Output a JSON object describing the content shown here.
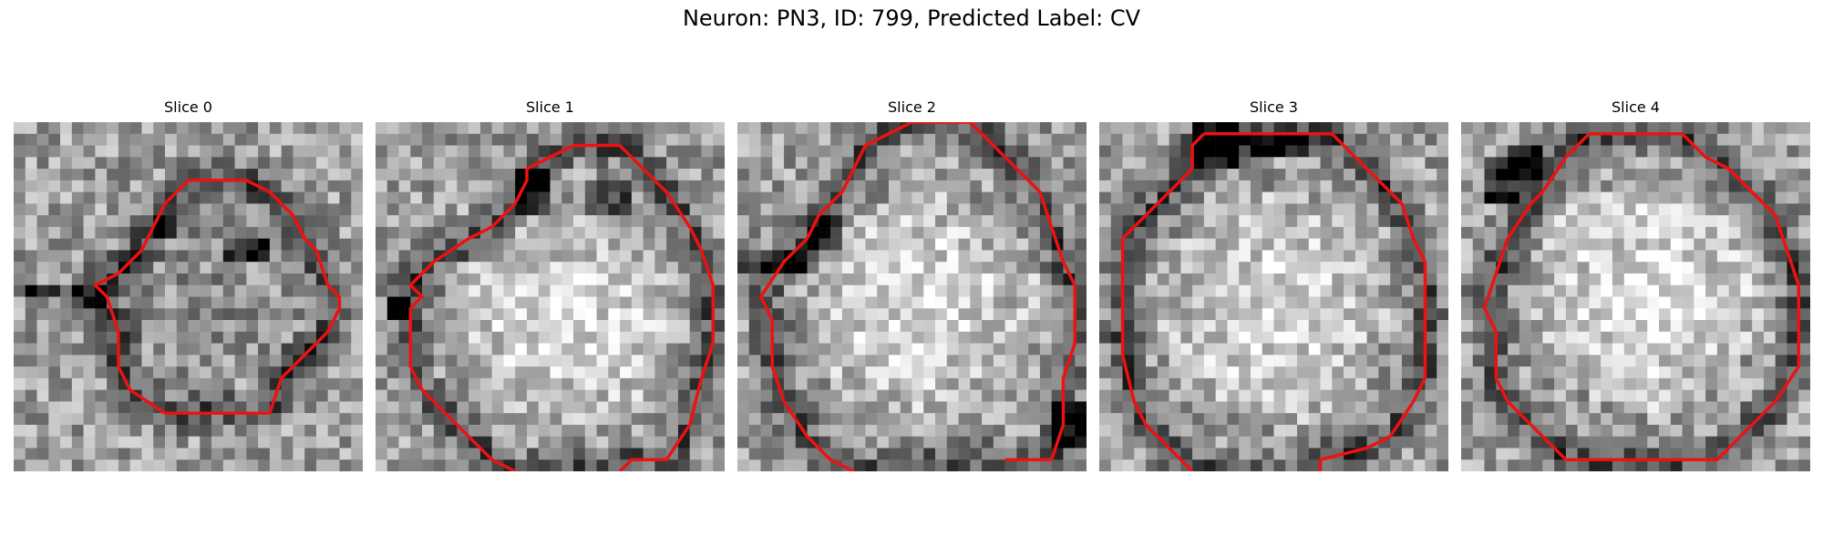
{
  "figure": {
    "title": "Neuron: PN3, ID: 799, Predicted Label: CV",
    "outline_color": "#ee1111",
    "colormap": "gray"
  },
  "slices": [
    {
      "title": "Slice 0",
      "outline": [
        [
          15,
          5
        ],
        [
          20,
          5
        ],
        [
          22,
          6
        ],
        [
          24,
          8
        ],
        [
          25,
          10
        ],
        [
          26,
          11
        ],
        [
          27,
          14
        ],
        [
          28,
          15
        ],
        [
          28,
          16
        ],
        [
          27,
          18
        ],
        [
          25,
          20
        ],
        [
          23,
          22
        ],
        [
          22,
          25
        ],
        [
          21,
          25
        ],
        [
          13,
          25
        ],
        [
          10,
          23
        ],
        [
          9,
          21
        ],
        [
          9,
          18
        ],
        [
          8,
          15
        ],
        [
          7,
          14
        ],
        [
          9,
          13
        ],
        [
          11,
          11
        ],
        [
          12,
          9
        ],
        [
          13,
          7
        ],
        [
          15,
          5
        ]
      ],
      "closed": true
    },
    {
      "title": "Slice 1",
      "outline": [
        [
          17,
          2
        ],
        [
          21,
          2
        ],
        [
          23,
          4
        ],
        [
          25,
          6
        ],
        [
          27,
          9
        ],
        [
          28,
          11
        ],
        [
          29,
          14
        ],
        [
          29,
          19
        ],
        [
          28,
          22
        ],
        [
          27,
          26
        ],
        [
          25,
          29
        ],
        [
          22,
          29
        ],
        [
          21,
          30
        ]
      ],
      "outline_b": [
        [
          12,
          30
        ],
        [
          10,
          29
        ],
        [
          8,
          27
        ],
        [
          6,
          25
        ],
        [
          4,
          23
        ],
        [
          3,
          21
        ],
        [
          3,
          16
        ],
        [
          4,
          15
        ],
        [
          3,
          14
        ],
        [
          5,
          12
        ],
        [
          8,
          10
        ],
        [
          10,
          9
        ],
        [
          12,
          7
        ],
        [
          13,
          5
        ],
        [
          13,
          4
        ],
        [
          15,
          3
        ],
        [
          17,
          2
        ]
      ],
      "closed": false
    },
    {
      "title": "Slice 2",
      "outline": [
        [
          15,
          0
        ],
        [
          20,
          0
        ],
        [
          21,
          1
        ],
        [
          22,
          2
        ],
        [
          24,
          4
        ],
        [
          26,
          6
        ],
        [
          27,
          9
        ],
        [
          28,
          12
        ],
        [
          29,
          14
        ],
        [
          29,
          19
        ],
        [
          28,
          22
        ],
        [
          28,
          26
        ],
        [
          27,
          29
        ],
        [
          23,
          29
        ]
      ],
      "outline_b": [
        [
          10,
          30
        ],
        [
          8,
          29
        ],
        [
          6,
          27
        ],
        [
          4,
          24
        ],
        [
          3,
          21
        ],
        [
          3,
          17
        ],
        [
          2,
          15
        ],
        [
          4,
          12
        ],
        [
          6,
          10
        ],
        [
          7,
          8
        ],
        [
          9,
          6
        ],
        [
          10,
          4
        ],
        [
          11,
          2
        ],
        [
          13,
          1
        ],
        [
          15,
          0
        ]
      ],
      "closed": false
    },
    {
      "title": "Slice 3",
      "outline": [
        [
          9,
          1
        ],
        [
          20,
          1
        ],
        [
          21,
          2
        ],
        [
          23,
          4
        ],
        [
          26,
          7
        ],
        [
          27,
          10
        ],
        [
          28,
          12
        ],
        [
          28,
          22
        ],
        [
          27,
          24
        ],
        [
          25,
          27
        ],
        [
          23,
          28
        ],
        [
          19,
          29
        ],
        [
          19,
          30
        ]
      ],
      "outline_b": [
        [
          8,
          30
        ],
        [
          6,
          28
        ],
        [
          4,
          26
        ],
        [
          3,
          24
        ],
        [
          2,
          20
        ],
        [
          2,
          16
        ],
        [
          2,
          12
        ],
        [
          2,
          10
        ],
        [
          4,
          8
        ],
        [
          6,
          6
        ],
        [
          8,
          4
        ],
        [
          8,
          2
        ],
        [
          9,
          1
        ]
      ],
      "closed": false
    },
    {
      "title": "Slice 4",
      "outline": [
        [
          11,
          1
        ],
        [
          19,
          1
        ],
        [
          21,
          3
        ],
        [
          23,
          4
        ],
        [
          25,
          6
        ],
        [
          27,
          8
        ],
        [
          28,
          11
        ],
        [
          29,
          14
        ],
        [
          29,
          21
        ],
        [
          27,
          24
        ],
        [
          25,
          26
        ],
        [
          23,
          28
        ],
        [
          22,
          29
        ],
        [
          18,
          29
        ],
        [
          9,
          29
        ],
        [
          8,
          28
        ],
        [
          6,
          26
        ],
        [
          4,
          24
        ],
        [
          3,
          22
        ],
        [
          3,
          18
        ],
        [
          2,
          16
        ],
        [
          3,
          13
        ],
        [
          4,
          10
        ],
        [
          6,
          7
        ],
        [
          7,
          6
        ],
        [
          9,
          3
        ],
        [
          11,
          1
        ]
      ],
      "closed": true
    }
  ]
}
